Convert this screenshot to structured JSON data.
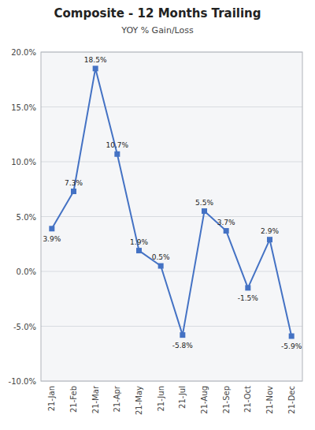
{
  "chart_data": {
    "type": "line",
    "title": "Composite - 12 Months Trailing",
    "subtitle": "YOY % Gain/Loss",
    "categories": [
      "21-Jan",
      "21-Feb",
      "21-Mar",
      "21-Apr",
      "21-May",
      "21-Jun",
      "21-Jul",
      "21-Aug",
      "21-Sep",
      "21-Oct",
      "21-Nov",
      "21-Dec"
    ],
    "values": [
      3.9,
      7.3,
      18.5,
      10.7,
      1.9,
      0.5,
      -5.8,
      5.5,
      3.7,
      -1.5,
      2.9,
      -5.9
    ],
    "value_labels": [
      "3.9%",
      "7.3%",
      "18.5%",
      "10.7%",
      "1.9%",
      "0.5%",
      "-5.8%",
      "5.5%",
      "3.7%",
      "-1.5%",
      "2.9%",
      "-5.9%"
    ],
    "color": "#4472C4",
    "marker": "square",
    "ylim": [
      -10.0,
      20.0
    ],
    "yticks": [
      {
        "value": -10.0,
        "label": "-10.0%"
      },
      {
        "value": -5.0,
        "label": "-5.0%"
      },
      {
        "value": 0.0,
        "label": "0.0%"
      },
      {
        "value": 5.0,
        "label": "5.0%"
      },
      {
        "value": 10.0,
        "label": "10.0%"
      },
      {
        "value": 15.0,
        "label": "15.0%"
      },
      {
        "value": 20.0,
        "label": "20.0%"
      }
    ],
    "grid": true,
    "data_labels": true
  }
}
